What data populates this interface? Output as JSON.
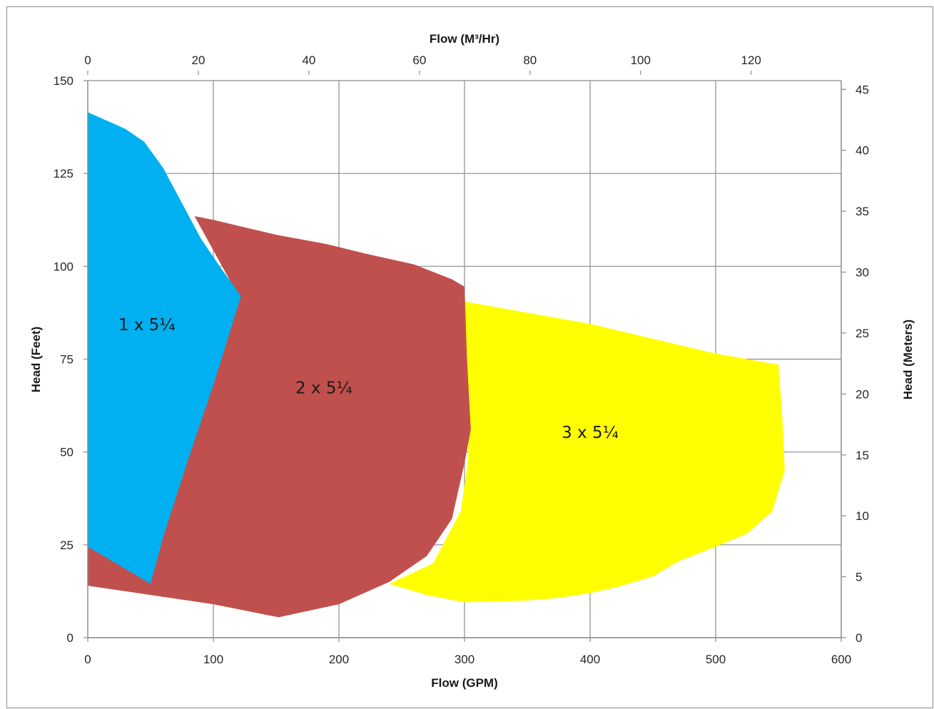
{
  "chart_data": {
    "type": "area",
    "title": "",
    "x_bottom": {
      "label": "Flow (GPM)",
      "range": [
        0,
        600
      ],
      "ticks": [
        "0",
        "100",
        "200",
        "300",
        "400",
        "500",
        "600"
      ]
    },
    "x_top": {
      "label": "Flow (M³/Hr)",
      "range": [
        0,
        136.3
      ],
      "ticks": [
        "0",
        "20",
        "40",
        "60",
        "80",
        "100",
        "120"
      ]
    },
    "y_left": {
      "label": "Head (Feet)",
      "range": [
        0,
        150
      ],
      "ticks": [
        "0",
        "25",
        "50",
        "75",
        "100",
        "125",
        "150"
      ]
    },
    "y_right": {
      "label": "Head (Meters)",
      "range": [
        0,
        45.72
      ],
      "ticks": [
        "0",
        "5",
        "10",
        "15",
        "20",
        "25",
        "30",
        "35",
        "40",
        "45"
      ]
    },
    "grid": true,
    "series": [
      {
        "name": "3 x 5¼",
        "color": "#ffff00",
        "label_at": [
          400,
          55
        ],
        "points": [
          [
            300,
            90.5
          ],
          [
            350,
            87.5
          ],
          [
            400,
            84.5
          ],
          [
            450,
            80.5
          ],
          [
            500,
            76.5
          ],
          [
            550,
            73.5
          ],
          [
            553,
            60
          ],
          [
            555,
            45
          ],
          [
            545,
            34
          ],
          [
            525,
            28
          ],
          [
            500,
            24.5
          ],
          [
            470,
            20.5
          ],
          [
            450,
            16.5
          ],
          [
            420,
            13.5
          ],
          [
            400,
            12
          ],
          [
            375,
            10.7
          ],
          [
            350,
            10
          ],
          [
            300,
            9.5
          ],
          [
            270,
            11.5
          ],
          [
            240,
            14.5
          ],
          [
            275,
            20
          ],
          [
            297,
            34
          ],
          [
            303,
            48
          ],
          [
            303,
            60
          ],
          [
            302,
            75
          ],
          [
            300,
            90.5
          ]
        ]
      },
      {
        "name": "2 x 5¼",
        "color": "#c0504d",
        "label_at": [
          188,
          67
        ],
        "points": [
          [
            0,
            14
          ],
          [
            100,
            9
          ],
          [
            152,
            5.5
          ],
          [
            200,
            9
          ],
          [
            240,
            15
          ],
          [
            270,
            22
          ],
          [
            290,
            32
          ],
          [
            300,
            47
          ],
          [
            305,
            56
          ],
          [
            302,
            75
          ],
          [
            300,
            94.5
          ],
          [
            290,
            96.5
          ],
          [
            260,
            100.5
          ],
          [
            220,
            103.5
          ],
          [
            190,
            106
          ],
          [
            150,
            108.5
          ],
          [
            125,
            110.5
          ],
          [
            100,
            112.5
          ],
          [
            85,
            113.5
          ],
          [
            120,
            92
          ],
          [
            0,
            24
          ]
        ]
      },
      {
        "name": "1 x 5¼",
        "color": "#00b0f0",
        "label_at": [
          47,
          84
        ],
        "points": [
          [
            0,
            141.5
          ],
          [
            20,
            138.5
          ],
          [
            30,
            137
          ],
          [
            45,
            133.5
          ],
          [
            60,
            126.5
          ],
          [
            75,
            117
          ],
          [
            90,
            107.5
          ],
          [
            105,
            100
          ],
          [
            122,
            92
          ],
          [
            100,
            68
          ],
          [
            80,
            48
          ],
          [
            60,
            27
          ],
          [
            50,
            14.5
          ],
          [
            0,
            24.5
          ]
        ]
      }
    ]
  }
}
